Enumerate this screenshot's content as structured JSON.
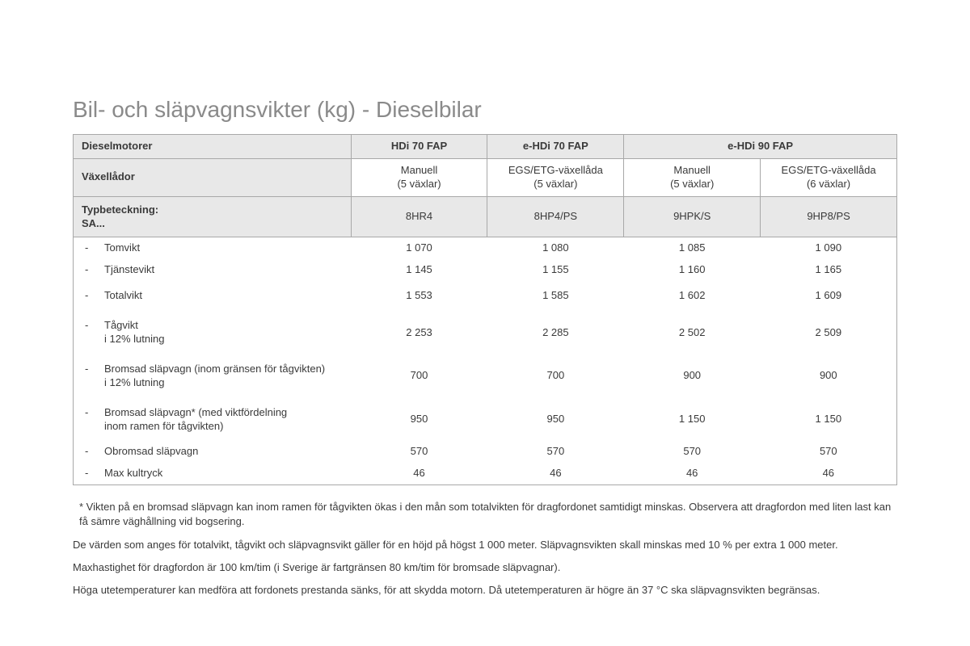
{
  "title": "Bil- och släpvagnsvikter (kg) - Dieselbilar",
  "table": {
    "headers": {
      "engines_label": "Dieselmotorer",
      "gearbox_label": "Växellådor",
      "typecode_label": "Typbeteckning:\nSA...",
      "engines": [
        "HDi 70 FAP",
        "e-HDi 70 FAP",
        "e-HDi 90 FAP"
      ],
      "gearboxes": [
        "Manuell\n(5 växlar)",
        "EGS/ETG-växellåda\n(5 växlar)",
        "Manuell\n(5 växlar)",
        "EGS/ETG-växellåda\n(6 växlar)"
      ],
      "typecodes": [
        "8HR4",
        "8HP4/PS",
        "9HPK/S",
        "9HP8/PS"
      ]
    },
    "rows": [
      {
        "label": "Tomvikt",
        "values": [
          "1 070",
          "1 080",
          "1 085",
          "1 090"
        ],
        "tall": false
      },
      {
        "label": "Tjänstevikt",
        "values": [
          "1 145",
          "1 155",
          "1 160",
          "1 165"
        ],
        "tall": false
      },
      {
        "label": "Totalvikt",
        "values": [
          "1 553",
          "1 585",
          "1 602",
          "1 609"
        ],
        "tall": true
      },
      {
        "label": "Tågvikt\ni 12% lutning",
        "values": [
          "2 253",
          "2 285",
          "2 502",
          "2 509"
        ],
        "tall": true
      },
      {
        "label": "Bromsad släpvagn (inom gränsen för tågvikten)\ni 12% lutning",
        "values": [
          "700",
          "700",
          "900",
          "900"
        ],
        "tall": true
      },
      {
        "label": "Bromsad släpvagn* (med viktfördelning\ninom ramen för tågvikten)",
        "values": [
          "950",
          "950",
          "1 150",
          "1 150"
        ],
        "tall": true
      },
      {
        "label": "Obromsad släpvagn",
        "values": [
          "570",
          "570",
          "570",
          "570"
        ],
        "tall": false
      },
      {
        "label": "Max kultryck",
        "values": [
          "46",
          "46",
          "46",
          "46"
        ],
        "tall": false
      }
    ]
  },
  "footnotes": {
    "p1": "* Vikten på en bromsad släpvagn kan inom ramen för tågvikten ökas i den mån som totalvikten för dragfordonet samtidigt minskas. Observera att dragfordon med liten last kan få sämre väghållning vid bogsering.",
    "p2": "De värden som anges för totalvikt, tågvikt och släpvagnsvikt gäller för en höjd på högst 1 000 meter. Släpvagnsvikten skall minskas med 10 % per extra 1 000 meter.",
    "p3": "Maxhastighet för dragfordon är 100 km/tim (i Sverige är fartgränsen 80 km/tim för bromsade släpvagnar).",
    "p4": "Höga utetemperaturer kan medföra att fordonets prestanda sänks, för att skydda motorn. Då utetemperaturen är högre än 37 °C ska släpvagnsvikten begränsas."
  },
  "colors": {
    "title": "#8a8a8a",
    "text": "#3a3a3a",
    "border": "#a8a8a8",
    "header_bg": "#e8e8e8",
    "background": "#ffffff"
  }
}
